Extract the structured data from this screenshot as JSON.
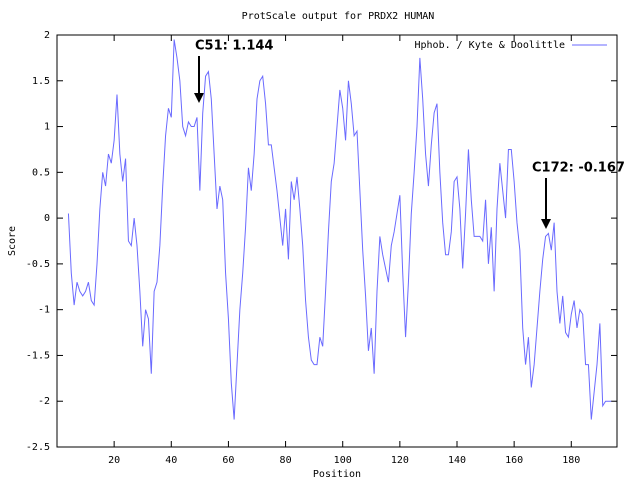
{
  "chart_data": {
    "type": "line",
    "title": "ProtScale output for PRDX2 HUMAN",
    "x_label": "Position",
    "y_label": "Score",
    "xlim": [
      0,
      196
    ],
    "ylim": [
      -2.5,
      2
    ],
    "xticks": [
      20,
      40,
      60,
      80,
      100,
      120,
      140,
      160,
      180
    ],
    "yticks": [
      2,
      1.5,
      1,
      0.5,
      0,
      -0.5,
      -1,
      -1.5,
      -2,
      -2.5
    ],
    "legend_position": "upper right",
    "annotations": [
      "C51: 1.144",
      "C172: -0.167"
    ],
    "x": [
      4,
      5,
      6,
      7,
      8,
      9,
      10,
      11,
      12,
      13,
      14,
      15,
      16,
      17,
      18,
      19,
      20,
      21,
      22,
      23,
      24,
      25,
      26,
      27,
      28,
      29,
      30,
      31,
      32,
      33,
      34,
      35,
      36,
      37,
      38,
      39,
      40,
      41,
      42,
      43,
      44,
      45,
      46,
      47,
      48,
      49,
      50,
      51,
      52,
      53,
      54,
      55,
      56,
      57,
      58,
      59,
      60,
      61,
      62,
      63,
      64,
      65,
      66,
      67,
      68,
      69,
      70,
      71,
      72,
      73,
      74,
      75,
      76,
      77,
      78,
      79,
      80,
      81,
      82,
      83,
      84,
      85,
      86,
      87,
      88,
      89,
      90,
      91,
      92,
      93,
      94,
      95,
      96,
      97,
      98,
      99,
      100,
      101,
      102,
      103,
      104,
      105,
      106,
      107,
      108,
      109,
      110,
      111,
      112,
      113,
      114,
      115,
      116,
      117,
      118,
      119,
      120,
      121,
      122,
      123,
      124,
      125,
      126,
      127,
      128,
      129,
      130,
      131,
      132,
      133,
      134,
      135,
      136,
      137,
      138,
      139,
      140,
      141,
      142,
      143,
      144,
      145,
      146,
      147,
      148,
      149,
      150,
      151,
      152,
      153,
      154,
      155,
      156,
      157,
      158,
      159,
      160,
      161,
      162,
      163,
      164,
      165,
      166,
      167,
      168,
      169,
      170,
      171,
      172,
      173,
      174,
      175,
      176,
      177,
      178,
      179,
      180,
      181,
      182,
      183,
      184,
      185,
      186,
      187,
      188,
      189,
      190,
      191,
      192,
      193,
      194
    ],
    "series": [
      {
        "name": "Hphob. / Kyte & Doolittle",
        "color": "#6a6aff",
        "values": [
          0.05,
          -0.6,
          -0.95,
          -0.7,
          -0.8,
          -0.85,
          -0.8,
          -0.7,
          -0.9,
          -0.95,
          -0.5,
          0.1,
          0.5,
          0.35,
          0.7,
          0.6,
          0.85,
          1.35,
          0.7,
          0.4,
          0.65,
          -0.25,
          -0.3,
          0.0,
          -0.3,
          -0.8,
          -1.4,
          -1.0,
          -1.1,
          -1.7,
          -0.8,
          -0.7,
          -0.3,
          0.35,
          0.9,
          1.2,
          1.1,
          1.95,
          1.75,
          1.5,
          1.0,
          0.9,
          1.05,
          1.0,
          1.0,
          1.1,
          0.3,
          1.144,
          1.55,
          1.6,
          1.3,
          0.7,
          0.1,
          0.35,
          0.2,
          -0.6,
          -1.1,
          -1.8,
          -2.2,
          -1.6,
          -1.0,
          -0.6,
          -0.1,
          0.55,
          0.3,
          0.7,
          1.3,
          1.5,
          1.55,
          1.25,
          0.8,
          0.8,
          0.55,
          0.3,
          0.0,
          -0.3,
          0.1,
          -0.45,
          0.4,
          0.2,
          0.45,
          0.1,
          -0.3,
          -0.9,
          -1.3,
          -1.55,
          -1.6,
          -1.6,
          -1.3,
          -1.4,
          -0.8,
          -0.15,
          0.4,
          0.6,
          1.0,
          1.4,
          1.2,
          0.85,
          1.5,
          1.25,
          0.9,
          0.95,
          0.3,
          -0.35,
          -0.85,
          -1.45,
          -1.2,
          -1.7,
          -0.8,
          -0.2,
          -0.4,
          -0.55,
          -0.7,
          -0.3,
          -0.15,
          0.05,
          0.25,
          -0.6,
          -1.3,
          -0.7,
          0.05,
          0.5,
          1.0,
          1.75,
          1.3,
          0.7,
          0.35,
          0.8,
          1.15,
          1.25,
          0.5,
          -0.05,
          -0.4,
          -0.4,
          -0.15,
          0.4,
          0.45,
          0.1,
          -0.55,
          0.05,
          0.75,
          0.2,
          -0.2,
          -0.2,
          -0.2,
          -0.25,
          0.2,
          -0.5,
          -0.1,
          -0.8,
          0.1,
          0.6,
          0.3,
          0.0,
          0.75,
          0.75,
          0.4,
          -0.05,
          -0.35,
          -1.2,
          -1.6,
          -1.3,
          -1.85,
          -1.6,
          -1.2,
          -0.8,
          -0.45,
          -0.2,
          -0.167,
          -0.35,
          -0.05,
          -0.8,
          -1.15,
          -0.85,
          -1.25,
          -1.3,
          -1.05,
          -0.9,
          -1.2,
          -1.0,
          -1.05,
          -1.6,
          -1.6,
          -2.2,
          -1.9,
          -1.6,
          -1.15,
          -2.05,
          -2.0,
          -2.0,
          -2.0
        ]
      }
    ]
  }
}
